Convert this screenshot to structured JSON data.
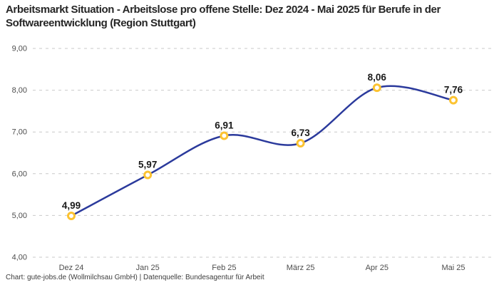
{
  "header": {
    "title": "Arbeitsmarkt Situation - Arbeitslose pro offene Stelle: Dez 2024 - Mai 2025 für Berufe in der Softwareentwicklung (Region Stuttgart)"
  },
  "footer": {
    "credit": "Chart: gute-jobs.de (Wollmilchsau GmbH) | Datenquelle: Bundesagentur für Arbeit"
  },
  "chart_data": {
    "type": "line",
    "title": "Arbeitsmarkt Situation - Arbeitslose pro offene Stelle: Dez 2024 - Mai 2025 für Berufe in der Softwareentwicklung (Region Stuttgart)",
    "categories": [
      "Dez 24",
      "Jan 25",
      "Feb 25",
      "März 25",
      "Apr 25",
      "Mai 25"
    ],
    "values": [
      4.99,
      5.97,
      6.91,
      6.73,
      8.06,
      7.76
    ],
    "point_labels": [
      "4,99",
      "5,97",
      "6,91",
      "6,73",
      "8,06",
      "7,76"
    ],
    "xlabel": "",
    "ylabel": "",
    "ylim": [
      4,
      9
    ],
    "y_ticks": [
      4,
      5,
      6,
      7,
      8,
      9
    ],
    "y_tick_labels": [
      "4,00",
      "5,00",
      "6,00",
      "7,00",
      "8,00",
      "9,00"
    ],
    "grid": "horizontal-dashed",
    "legend": "none",
    "line_style": "smooth",
    "colors": {
      "line": "#2b3a9c",
      "marker_ring": "#fcc331",
      "marker_fill": "#ffffff",
      "grid": "#c9c9c9",
      "axis_text": "#4d4d4d",
      "point_label": "#1a1a1a",
      "title_text": "#262626",
      "footer_text": "#3c3c3c",
      "background": "#ffffff"
    }
  }
}
